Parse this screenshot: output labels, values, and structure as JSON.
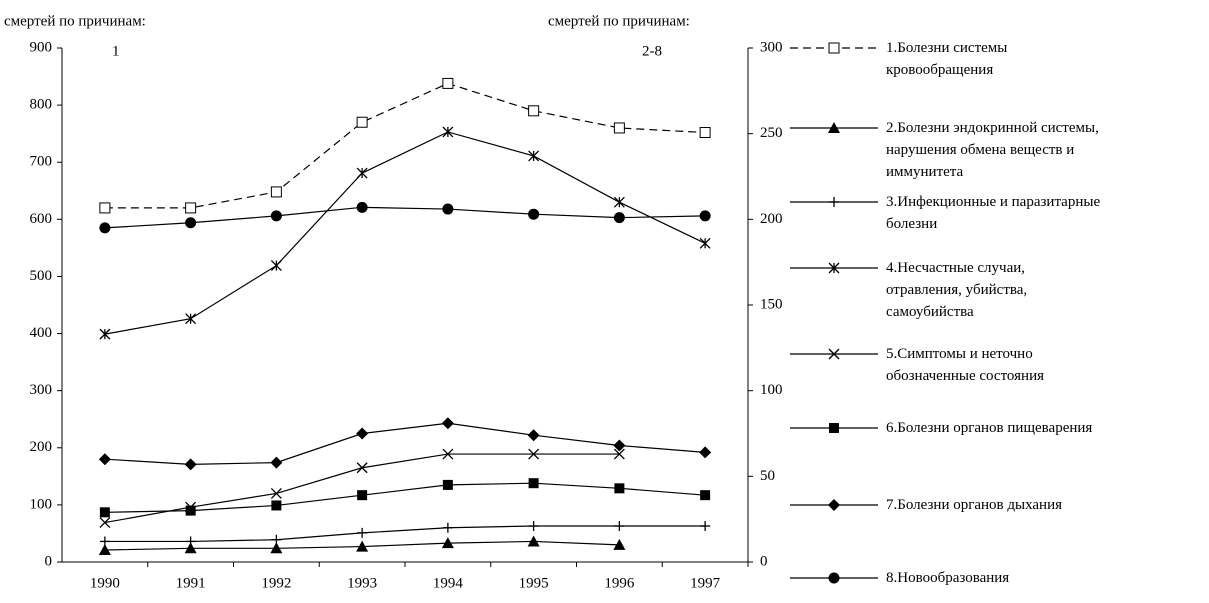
{
  "chart_data": {
    "type": "line",
    "left_header": "смертей по причинам:",
    "left_axis_note": "1",
    "right_header": "смертей по причинам:",
    "right_axis_note": "2-8",
    "categories": [
      "1990",
      "1991",
      "1992",
      "1993",
      "1994",
      "1995",
      "1996",
      "1997"
    ],
    "ylim": [
      0,
      900
    ],
    "yticks": [
      0,
      100,
      200,
      300,
      400,
      500,
      600,
      700,
      800,
      900
    ],
    "y2lim": [
      0,
      300
    ],
    "y2ticks": [
      0,
      50,
      100,
      150,
      200,
      250,
      300
    ],
    "series": [
      {
        "name": "1.Болезни системы\nкровообращения",
        "color": "#000000",
        "marker": "square-open",
        "dashed": true,
        "axis": "y",
        "values": [
          620,
          620,
          648,
          770,
          838,
          790,
          760,
          752
        ]
      },
      {
        "name": "2.Болезни эндокринной системы,\nнарушения обмена веществ и\nиммунитета",
        "color": "#000000",
        "marker": "triangle",
        "dashed": false,
        "axis": "y2",
        "values": [
          7,
          8,
          8,
          9,
          11,
          12,
          10,
          null
        ]
      },
      {
        "name": "3.Инфекционные и паразитарные\nболезни",
        "color": "#000000",
        "marker": "plus",
        "dashed": false,
        "axis": "y2",
        "values": [
          12,
          12,
          13,
          17,
          20,
          21,
          21,
          21
        ]
      },
      {
        "name": "4.Несчастные случаи,\nотравления, убийства,\nсамоубийства",
        "color": "#000000",
        "marker": "asterisk",
        "dashed": false,
        "axis": "y2",
        "values": [
          133,
          142,
          173,
          227,
          251,
          237,
          210,
          186
        ]
      },
      {
        "name": "5.Симптомы и неточно\nобозначенные состояния",
        "color": "#000000",
        "marker": "cross",
        "dashed": false,
        "axis": "y2",
        "values": [
          23,
          32,
          40,
          55,
          63,
          63,
          63,
          null
        ]
      },
      {
        "name": "6.Болезни органов пищеварения",
        "color": "#000000",
        "marker": "square",
        "dashed": false,
        "axis": "y2",
        "values": [
          29,
          30,
          33,
          39,
          45,
          46,
          43,
          39
        ]
      },
      {
        "name": "7.Болезни органов дыхания",
        "color": "#000000",
        "marker": "diamond",
        "dashed": false,
        "axis": "y2",
        "values": [
          60,
          57,
          58,
          75,
          81,
          74,
          68,
          64
        ]
      },
      {
        "name": "8.Новообразования",
        "color": "#000000",
        "marker": "circle",
        "dashed": false,
        "axis": "y2",
        "values": [
          195,
          198,
          202,
          207,
          206,
          203,
          201,
          202
        ]
      }
    ]
  }
}
